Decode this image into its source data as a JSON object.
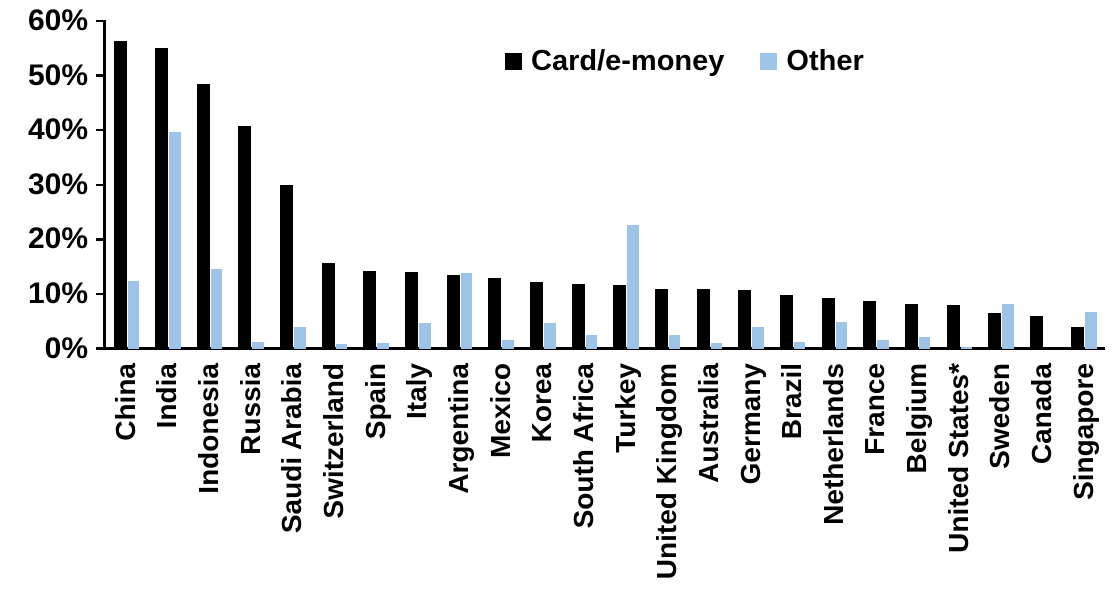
{
  "chart_data": {
    "type": "bar",
    "title": "",
    "xlabel": "",
    "ylabel": "",
    "ylim": [
      0,
      60
    ],
    "ytick_step": 10,
    "ytick_labels": [
      "0%",
      "10%",
      "20%",
      "30%",
      "40%",
      "50%",
      "60%"
    ],
    "grid": false,
    "legend_position": "top-center-inside",
    "categories": [
      "China",
      "India",
      "Indonesia",
      "Russia",
      "Saudi Arabia",
      "Switzerland",
      "Spain",
      "Italy",
      "Argentina",
      "Mexico",
      "Korea",
      "South Africa",
      "Turkey",
      "United Kingdom",
      "Australia",
      "Germany",
      "Brazil",
      "Netherlands",
      "France",
      "Belgium",
      "United States*",
      "Sweden",
      "Canada",
      "Singapore"
    ],
    "series": [
      {
        "name": "Card/e-money",
        "color": "#000000",
        "values": [
          56.4,
          55.1,
          48.4,
          40.7,
          29.9,
          15.7,
          14.2,
          14.0,
          13.4,
          12.9,
          12.2,
          11.8,
          11.6,
          11.0,
          10.9,
          10.7,
          9.9,
          9.3,
          8.7,
          8.1,
          7.9,
          6.6,
          6.0,
          3.9
        ]
      },
      {
        "name": "Other",
        "color": "#9DC3E6",
        "values": [
          12.4,
          39.7,
          14.6,
          1.2,
          4.0,
          0.9,
          1.1,
          4.6,
          13.9,
          1.5,
          4.6,
          2.5,
          22.6,
          2.4,
          1.0,
          4.0,
          1.2,
          4.9,
          1.6,
          2.1,
          0.3,
          8.1,
          0.0,
          6.7
        ]
      }
    ]
  }
}
